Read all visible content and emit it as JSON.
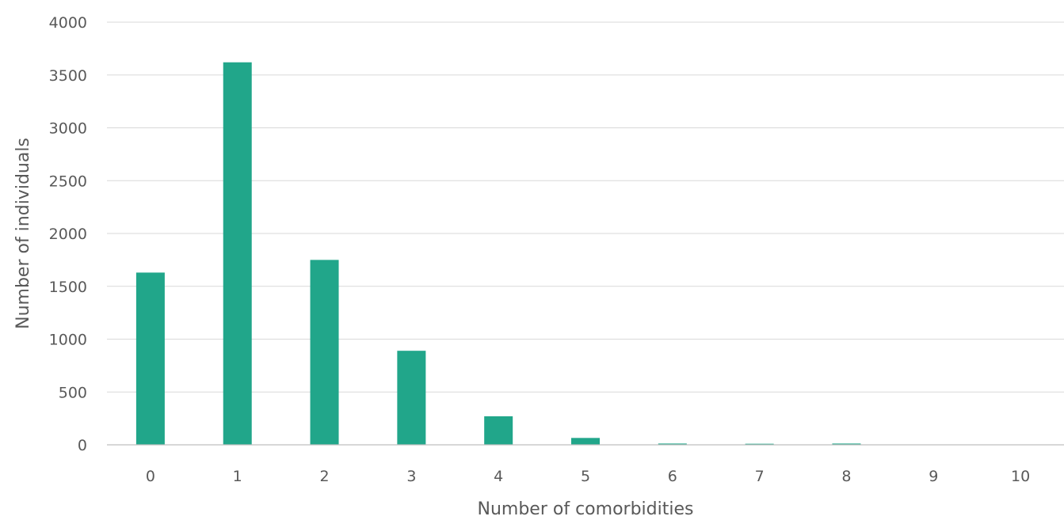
{
  "chart_data": {
    "type": "bar",
    "title": "",
    "xlabel": "Number of comorbidities",
    "ylabel": "Number of individuals",
    "categories": [
      "0",
      "1",
      "2",
      "3",
      "4",
      "5",
      "6",
      "7",
      "8",
      "9",
      "10"
    ],
    "values": [
      1630,
      3620,
      1750,
      890,
      270,
      65,
      12,
      10,
      12,
      0,
      0
    ],
    "ylim": [
      0,
      4000
    ],
    "yticks": [
      "0",
      "500",
      "1000",
      "1500",
      "2000",
      "2500",
      "3000",
      "3500",
      "4000"
    ],
    "grid": true,
    "legend": "none",
    "colors": {
      "bar": "#21a68a"
    }
  }
}
